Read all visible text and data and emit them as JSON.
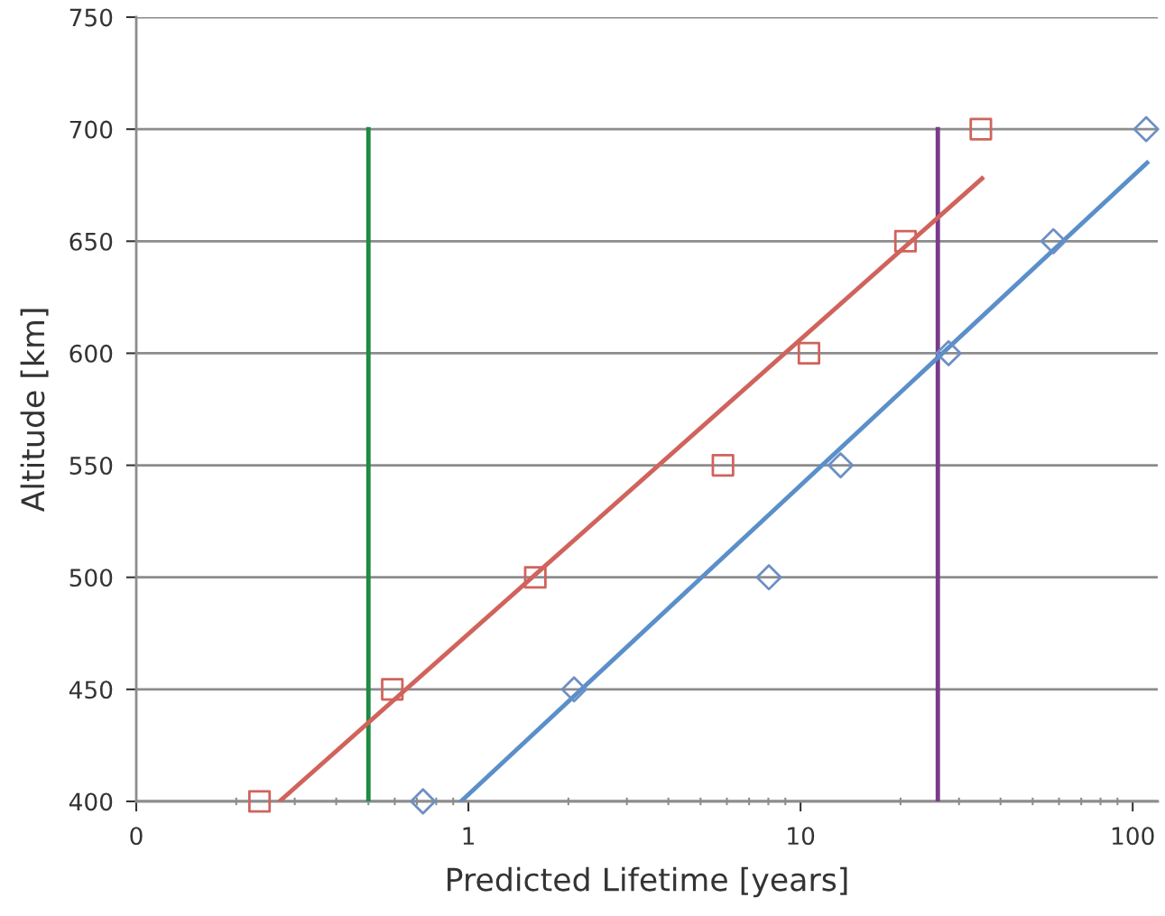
{
  "chart_data": {
    "type": "scatter",
    "xlabel": "Predicted Lifetime [years]",
    "ylabel": "Altitude [km]",
    "log": "x",
    "xlim": [
      0.1,
      119
    ],
    "xticks": [
      {
        "value": 0.1,
        "label": "0"
      },
      1,
      10,
      100
    ],
    "ylim": [
      400,
      750
    ],
    "yticks": [
      400,
      450,
      500,
      550,
      600,
      650,
      700,
      750
    ],
    "grid": "y",
    "legend": false,
    "series": [
      {
        "type": "line",
        "color": "#1e8a44",
        "marker": "none",
        "x": [
          0.5,
          0.5
        ],
        "values": [
          400,
          700
        ]
      },
      {
        "type": "line",
        "color": "#7b3a8a",
        "marker": "none",
        "x": [
          25.9,
          25.9
        ],
        "values": [
          400,
          700
        ]
      },
      {
        "type": "line",
        "color": "#d0635c",
        "marker": "none",
        "x": [
          0.27,
          35.2
        ],
        "values": [
          400,
          678
        ]
      },
      {
        "type": "line",
        "color": "#5b8fc9",
        "marker": "none",
        "x": [
          0.95,
          110.5
        ],
        "values": [
          400,
          685
        ]
      },
      {
        "color": "#d0635c",
        "marker": "square",
        "x": [
          0.235,
          0.59,
          1.59,
          5.84,
          10.6,
          20.7,
          34.9
        ],
        "values": [
          400,
          450,
          500,
          550,
          600,
          650,
          700
        ]
      },
      {
        "color": "#6d8fc4",
        "marker": "diamond",
        "x": [
          0.73,
          2.08,
          8.03,
          13.2,
          27.9,
          57.7,
          109.8
        ],
        "values": [
          400,
          450,
          500,
          550,
          600,
          650,
          700
        ]
      }
    ]
  }
}
